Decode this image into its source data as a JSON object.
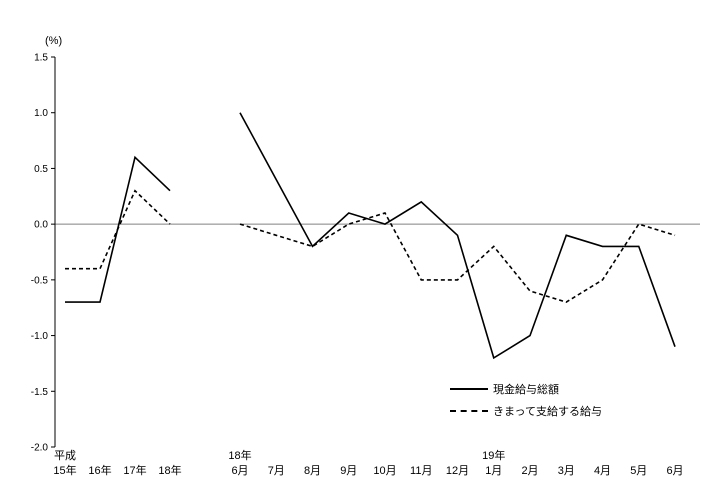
{
  "chart_data": {
    "type": "line",
    "title": "",
    "y_axis": {
      "unit_label": "(%)",
      "min": -2.0,
      "max": 1.5,
      "step": 0.5,
      "tick_labels": [
        "1.5",
        "1.0",
        "0.5",
        "0.0",
        "-0.5",
        "-1.0",
        "-1.5",
        "-2.0"
      ]
    },
    "zero_line": true,
    "grid": false,
    "legend_position": "bottom-right-inside",
    "series_meta": [
      {
        "key": "cash_total",
        "label": "現金給与総額",
        "style": "solid",
        "color": "#000000"
      },
      {
        "key": "scheduled",
        "label": "きまって支給する給与",
        "style": "dashed",
        "color": "#000000"
      }
    ],
    "segments": [
      {
        "name": "annual",
        "labels": [
          "15年",
          "16年",
          "17年",
          "18年"
        ],
        "era_labels": [
          {
            "text": "平成",
            "index": 0
          }
        ],
        "series": {
          "cash_total": [
            -0.7,
            -0.7,
            0.6,
            0.3
          ],
          "scheduled": [
            -0.4,
            -0.4,
            0.3,
            0.0
          ]
        }
      },
      {
        "name": "monthly",
        "labels": [
          "6月",
          "7月",
          "8月",
          "9月",
          "10月",
          "11月",
          "12月",
          "1月",
          "2月",
          "3月",
          "4月",
          "5月",
          "6月"
        ],
        "era_labels": [
          {
            "text": "18年",
            "index": 0
          },
          {
            "text": "19年",
            "index": 7
          }
        ],
        "series": {
          "cash_total": [
            1.0,
            0.4,
            -0.2,
            0.1,
            0.0,
            0.2,
            -0.1,
            -1.2,
            -1.0,
            -0.1,
            -0.2,
            -0.2,
            -1.1
          ],
          "scheduled": [
            0.0,
            -0.1,
            -0.2,
            0.0,
            0.1,
            -0.5,
            -0.5,
            -0.2,
            -0.6,
            -0.7,
            -0.5,
            0.0,
            -0.1
          ]
        }
      }
    ]
  }
}
